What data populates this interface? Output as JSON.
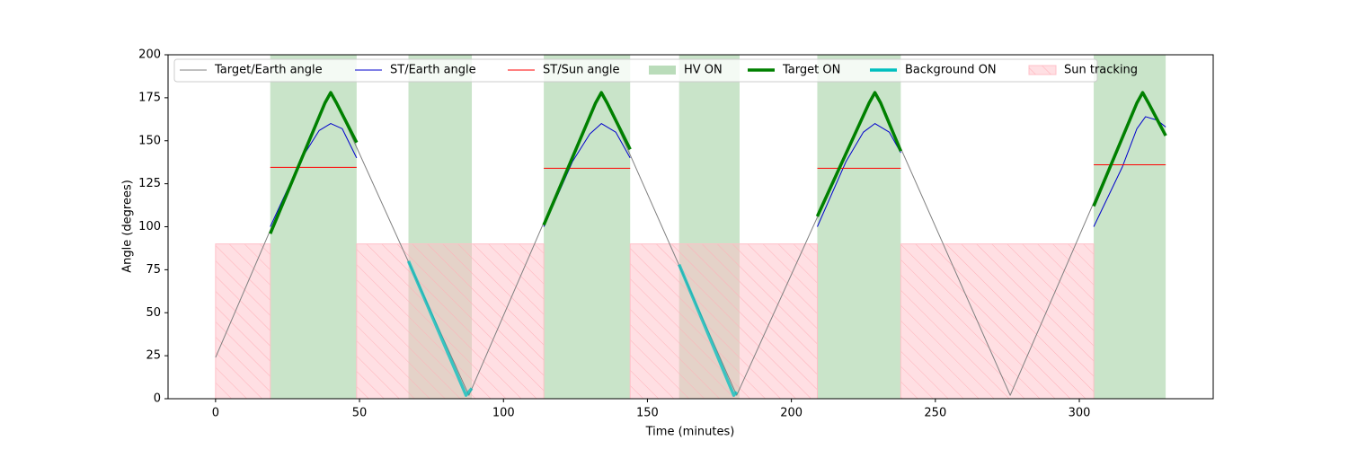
{
  "chart_data": {
    "type": "line",
    "xlabel": "Time (minutes)",
    "ylabel": "Angle (degrees)",
    "xlim": [
      -16.5,
      346.5
    ],
    "ylim": [
      0,
      200
    ],
    "xticks": [
      0,
      50,
      100,
      150,
      200,
      250,
      300
    ],
    "yticks": [
      0,
      25,
      50,
      75,
      100,
      125,
      150,
      175,
      200
    ],
    "series": [
      {
        "name": "Target/Earth angle",
        "color": "#808080",
        "width": 1,
        "x": [
          0,
          38,
          40,
          42,
          88,
          132,
          134,
          136,
          181,
          227,
          229,
          231,
          276,
          320,
          322,
          324,
          330
        ],
        "values": [
          24,
          172,
          178,
          172,
          2,
          172,
          178,
          172,
          2,
          172,
          178,
          172,
          2,
          172,
          178,
          172,
          153
        ]
      },
      {
        "name": "ST/Earth angle",
        "color": "#0000cc",
        "width": 1,
        "x": [
          19,
          30,
          36,
          40,
          44,
          49,
          null,
          114,
          124,
          130,
          134,
          139,
          144,
          null,
          209,
          219,
          225,
          229,
          234,
          238,
          null,
          305,
          315,
          320,
          323,
          327,
          330
        ],
        "values": [
          100,
          140,
          156,
          160,
          157,
          140,
          null,
          100,
          138,
          154,
          160,
          155,
          140,
          null,
          100,
          138,
          155,
          160,
          155,
          143,
          null,
          100,
          135,
          157,
          164,
          162,
          158
        ]
      },
      {
        "name": "ST/Sun angle",
        "color": "#ff0000",
        "width": 1,
        "x": [
          19,
          49,
          null,
          114,
          144,
          null,
          209,
          238,
          null,
          305,
          330
        ],
        "values": [
          134.5,
          134.5,
          null,
          134,
          134,
          null,
          134,
          134,
          null,
          136,
          136
        ]
      },
      {
        "name": "Target ON",
        "color": "#008000",
        "width": 3.5,
        "x": [
          19,
          38,
          40,
          42,
          49,
          null,
          114,
          132,
          134,
          136,
          144,
          null,
          209,
          227,
          229,
          231,
          238,
          null,
          305,
          320,
          322,
          324,
          330
        ],
        "values": [
          96,
          172,
          178,
          172,
          149,
          null,
          101,
          172,
          178,
          172,
          145,
          null,
          106,
          172,
          178,
          172,
          144,
          null,
          112,
          172,
          178,
          172,
          153
        ]
      },
      {
        "name": "Background ON",
        "color": "#00bfbf",
        "width": 3.5,
        "x": [
          67,
          87,
          89,
          null,
          161,
          180,
          181
        ],
        "values": [
          80,
          2,
          6,
          null,
          78,
          2,
          4
        ]
      }
    ],
    "spans": [
      {
        "name": "HV ON",
        "color": "#b2d8b2",
        "ranges": [
          [
            19,
            49
          ],
          [
            67,
            89
          ],
          [
            114,
            144
          ],
          [
            161,
            182
          ],
          [
            209,
            238
          ],
          [
            305,
            330
          ]
        ]
      },
      {
        "name": "Sun tracking",
        "color": "#ffc0c8",
        "ranges": [
          [
            0,
            19
          ],
          [
            49,
            114
          ],
          [
            144,
            209
          ],
          [
            238,
            305
          ]
        ],
        "y": [
          0,
          90
        ]
      }
    ]
  }
}
